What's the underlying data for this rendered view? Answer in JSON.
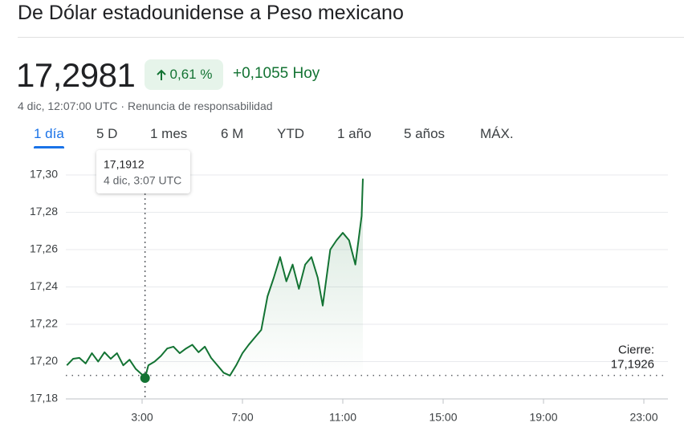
{
  "header": {
    "title": "De Dólar estadounidense a Peso mexicano",
    "price": "17,2981",
    "change_percent": "0,61 %",
    "change_today": "+0,1055 Hoy",
    "timestamp": "4 dic, 12:07:00 UTC",
    "disclaimer": "Renuncia de responsabilidad"
  },
  "tabs": [
    "1 día",
    "5 D",
    "1 mes",
    "6 M",
    "YTD",
    "1 año",
    "5 años",
    "MÁX."
  ],
  "chart_data": {
    "type": "line",
    "color": "#137333",
    "grid": true,
    "x": [
      0,
      0.25,
      0.5,
      0.75,
      1,
      1.25,
      1.5,
      1.75,
      2,
      2.25,
      2.5,
      2.75,
      3,
      3.1167,
      3.25,
      3.5,
      3.75,
      4,
      4.25,
      4.5,
      4.75,
      5,
      5.25,
      5.5,
      5.75,
      6,
      6.25,
      6.5,
      6.75,
      7,
      7.25,
      7.5,
      7.75,
      8,
      8.25,
      8.5,
      8.75,
      9,
      9.25,
      9.5,
      9.75,
      10,
      10.2,
      10.5,
      10.75,
      11,
      11.25,
      11.5,
      11.75,
      11.8
    ],
    "values": [
      17.198,
      17.2015,
      17.202,
      17.199,
      17.2045,
      17.2,
      17.205,
      17.2015,
      17.2045,
      17.198,
      17.201,
      17.196,
      17.193,
      17.1912,
      17.198,
      17.2,
      17.203,
      17.207,
      17.208,
      17.2045,
      17.207,
      17.209,
      17.205,
      17.208,
      17.202,
      17.198,
      17.194,
      17.1925,
      17.198,
      17.2045,
      17.209,
      17.213,
      17.217,
      17.235,
      17.245,
      17.256,
      17.243,
      17.252,
      17.239,
      17.252,
      17.256,
      17.245,
      17.23,
      17.26,
      17.265,
      17.269,
      17.265,
      17.252,
      17.278,
      17.298
    ],
    "xlim": [
      0,
      24
    ],
    "xticks": [
      {
        "value": 3,
        "label": "3:00"
      },
      {
        "value": 7,
        "label": "7:00"
      },
      {
        "value": 11,
        "label": "11:00"
      },
      {
        "value": 15,
        "label": "15:00"
      },
      {
        "value": 19,
        "label": "19:00"
      },
      {
        "value": 23,
        "label": "23:00"
      }
    ],
    "ylim": [
      17.18,
      17.31
    ],
    "yticks": [
      {
        "value": 17.18,
        "label": "17,18"
      },
      {
        "value": 17.2,
        "label": "17,20"
      },
      {
        "value": 17.22,
        "label": "17,22"
      },
      {
        "value": 17.24,
        "label": "17,24"
      },
      {
        "value": 17.26,
        "label": "17,26"
      },
      {
        "value": 17.28,
        "label": "17,28"
      },
      {
        "value": 17.3,
        "label": "17,30"
      }
    ],
    "previous_close": {
      "label": "Cierre:",
      "value": 17.1926,
      "value_label": "17,1926"
    },
    "tooltip": {
      "x": 3.1167,
      "value": 17.1912,
      "value_label": "17,1912",
      "time": "4 dic, 3:07 UTC"
    }
  }
}
